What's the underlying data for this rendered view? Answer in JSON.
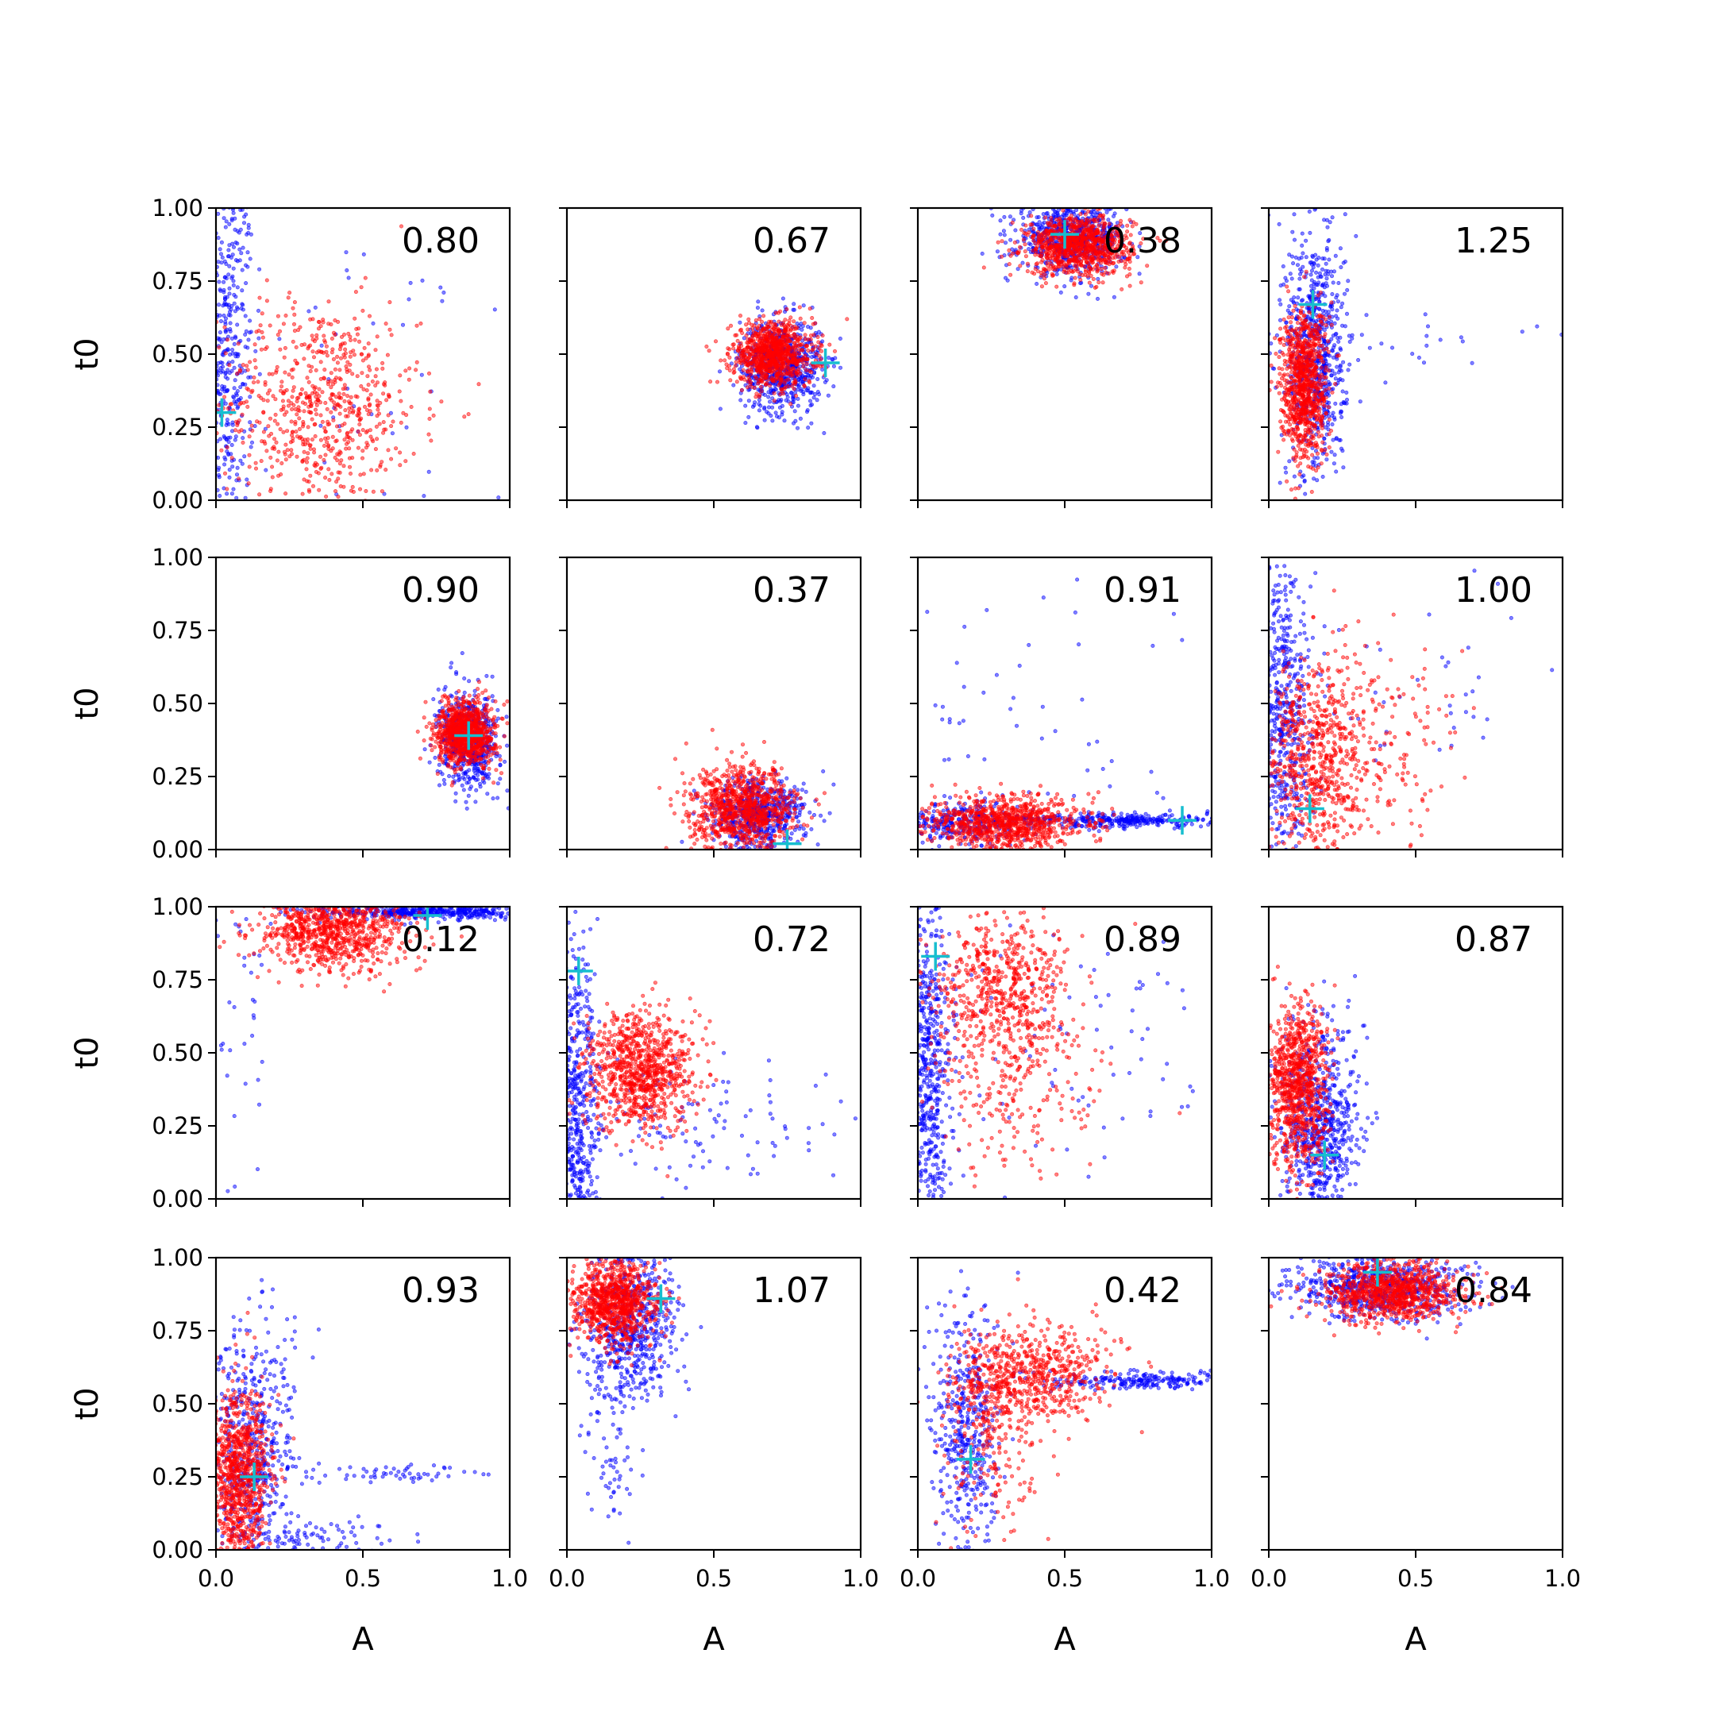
{
  "chart_data": {
    "type": "scatter",
    "grid": false,
    "xlabel": "A",
    "ylabel": "t0",
    "xlim": [
      0,
      1
    ],
    "ylim": [
      0,
      1
    ],
    "xticks": [
      "0.0",
      "0.5",
      "1.0"
    ],
    "yticks": [
      "0.00",
      "0.25",
      "0.50",
      "0.75",
      "1.00"
    ],
    "colors": {
      "series_blue": "#0000ff",
      "series_red": "#ff0000",
      "marker": "#17becf"
    },
    "panels": [
      {
        "annotation": "0.80",
        "truth": {
          "x": 0.02,
          "y": 0.3
        },
        "blue": [
          {
            "cx": 0.03,
            "cy": 0.5,
            "sx": 0.05,
            "sy": 0.35,
            "n": 500
          },
          {
            "cx": 0.45,
            "cy": 0.4,
            "sx": 0.3,
            "sy": 0.35,
            "n": 70
          }
        ],
        "red": [
          {
            "cx": 0.35,
            "cy": 0.32,
            "sx": 0.17,
            "sy": 0.18,
            "n": 700
          }
        ]
      },
      {
        "annotation": "0.67",
        "truth": {
          "x": 0.88,
          "y": 0.47
        },
        "blue": [
          {
            "cx": 0.73,
            "cy": 0.46,
            "sx": 0.07,
            "sy": 0.08,
            "n": 700
          }
        ],
        "red": [
          {
            "cx": 0.7,
            "cy": 0.5,
            "sx": 0.07,
            "sy": 0.055,
            "n": 900
          }
        ]
      },
      {
        "annotation": "0.38",
        "truth": {
          "x": 0.5,
          "y": 0.91
        },
        "blue": [
          {
            "cx": 0.52,
            "cy": 0.9,
            "sx": 0.09,
            "sy": 0.06,
            "n": 700
          }
        ],
        "red": [
          {
            "cx": 0.55,
            "cy": 0.87,
            "sx": 0.09,
            "sy": 0.05,
            "n": 900
          }
        ]
      },
      {
        "annotation": "1.25",
        "truth": {
          "x": 0.15,
          "y": 0.67
        },
        "blue": [
          {
            "cx": 0.16,
            "cy": 0.5,
            "sx": 0.05,
            "sy": 0.22,
            "n": 700
          },
          {
            "cx": 0.45,
            "cy": 0.55,
            "sx": 0.2,
            "sy": 0.06,
            "n": 25
          }
        ],
        "red": [
          {
            "cx": 0.12,
            "cy": 0.4,
            "sx": 0.04,
            "sy": 0.13,
            "n": 900
          }
        ]
      },
      {
        "annotation": "0.90",
        "truth": {
          "x": 0.86,
          "y": 0.39
        },
        "blue": [
          {
            "cx": 0.86,
            "cy": 0.37,
            "sx": 0.05,
            "sy": 0.08,
            "n": 600
          }
        ],
        "red": [
          {
            "cx": 0.85,
            "cy": 0.4,
            "sx": 0.05,
            "sy": 0.055,
            "n": 900
          }
        ]
      },
      {
        "annotation": "0.37",
        "truth": {
          "x": 0.75,
          "y": 0.02
        },
        "blue": [
          {
            "cx": 0.65,
            "cy": 0.12,
            "sx": 0.08,
            "sy": 0.06,
            "n": 600
          }
        ],
        "red": [
          {
            "cx": 0.6,
            "cy": 0.14,
            "sx": 0.09,
            "sy": 0.07,
            "n": 900
          }
        ]
      },
      {
        "annotation": "0.91",
        "truth": {
          "x": 0.9,
          "y": 0.1
        },
        "blue": [
          {
            "cx": 0.15,
            "cy": 0.09,
            "sx": 0.1,
            "sy": 0.04,
            "n": 300
          },
          {
            "cx": 0.7,
            "cy": 0.1,
            "sx": 0.2,
            "sy": 0.012,
            "n": 350
          },
          {
            "cx": 0.35,
            "cy": 0.45,
            "sx": 0.3,
            "sy": 0.28,
            "n": 60
          }
        ],
        "red": [
          {
            "cx": 0.3,
            "cy": 0.09,
            "sx": 0.13,
            "sy": 0.045,
            "n": 900
          }
        ]
      },
      {
        "annotation": "1.00",
        "truth": {
          "x": 0.14,
          "y": 0.14
        },
        "blue": [
          {
            "cx": 0.05,
            "cy": 0.45,
            "sx": 0.05,
            "sy": 0.28,
            "n": 550
          },
          {
            "cx": 0.55,
            "cy": 0.55,
            "sx": 0.25,
            "sy": 0.15,
            "n": 40
          }
        ],
        "red": [
          {
            "cx": 0.16,
            "cy": 0.3,
            "sx": 0.09,
            "sy": 0.18,
            "n": 700
          },
          {
            "cx": 0.4,
            "cy": 0.35,
            "sx": 0.12,
            "sy": 0.2,
            "n": 150
          }
        ]
      },
      {
        "annotation": "0.12",
        "truth": {
          "x": 0.72,
          "y": 0.97
        },
        "blue": [
          {
            "cx": 0.72,
            "cy": 0.98,
            "sx": 0.2,
            "sy": 0.012,
            "n": 450
          },
          {
            "cx": 0.1,
            "cy": 0.45,
            "sx": 0.07,
            "sy": 0.28,
            "n": 40
          }
        ],
        "red": [
          {
            "cx": 0.4,
            "cy": 0.92,
            "sx": 0.13,
            "sy": 0.07,
            "n": 900
          }
        ]
      },
      {
        "annotation": "0.72",
        "truth": {
          "x": 0.04,
          "y": 0.78
        },
        "blue": [
          {
            "cx": 0.03,
            "cy": 0.3,
            "sx": 0.04,
            "sy": 0.3,
            "n": 600
          },
          {
            "cx": 0.4,
            "cy": 0.25,
            "sx": 0.28,
            "sy": 0.12,
            "n": 120
          }
        ],
        "red": [
          {
            "cx": 0.25,
            "cy": 0.44,
            "sx": 0.09,
            "sy": 0.1,
            "n": 900
          }
        ]
      },
      {
        "annotation": "0.89",
        "truth": {
          "x": 0.06,
          "y": 0.83
        },
        "blue": [
          {
            "cx": 0.04,
            "cy": 0.45,
            "sx": 0.04,
            "sy": 0.3,
            "n": 600
          },
          {
            "cx": 0.55,
            "cy": 0.5,
            "sx": 0.25,
            "sy": 0.25,
            "n": 80
          }
        ],
        "red": [
          {
            "cx": 0.28,
            "cy": 0.73,
            "sx": 0.12,
            "sy": 0.12,
            "n": 550
          },
          {
            "cx": 0.3,
            "cy": 0.4,
            "sx": 0.14,
            "sy": 0.17,
            "n": 250
          }
        ]
      },
      {
        "annotation": "0.87",
        "truth": {
          "x": 0.19,
          "y": 0.15
        },
        "blue": [
          {
            "cx": 0.17,
            "cy": 0.25,
            "sx": 0.07,
            "sy": 0.18,
            "n": 700
          }
        ],
        "red": [
          {
            "cx": 0.1,
            "cy": 0.38,
            "sx": 0.05,
            "sy": 0.14,
            "n": 900
          }
        ]
      },
      {
        "annotation": "0.93",
        "truth": {
          "x": 0.13,
          "y": 0.25
        },
        "blue": [
          {
            "cx": 0.12,
            "cy": 0.3,
            "sx": 0.07,
            "sy": 0.25,
            "n": 550
          },
          {
            "cx": 0.65,
            "cy": 0.26,
            "sx": 0.2,
            "sy": 0.015,
            "n": 60
          },
          {
            "cx": 0.3,
            "cy": 0.04,
            "sx": 0.15,
            "sy": 0.03,
            "n": 80
          }
        ],
        "red": [
          {
            "cx": 0.08,
            "cy": 0.25,
            "sx": 0.05,
            "sy": 0.15,
            "n": 900
          }
        ]
      },
      {
        "annotation": "1.07",
        "truth": {
          "x": 0.32,
          "y": 0.86
        },
        "blue": [
          {
            "cx": 0.22,
            "cy": 0.78,
            "sx": 0.08,
            "sy": 0.13,
            "n": 600
          },
          {
            "cx": 0.15,
            "cy": 0.4,
            "sx": 0.05,
            "sy": 0.18,
            "n": 80
          }
        ],
        "red": [
          {
            "cx": 0.16,
            "cy": 0.85,
            "sx": 0.07,
            "sy": 0.07,
            "n": 900
          }
        ]
      },
      {
        "annotation": "0.42",
        "truth": {
          "x": 0.18,
          "y": 0.31
        },
        "blue": [
          {
            "cx": 0.17,
            "cy": 0.4,
            "sx": 0.06,
            "sy": 0.22,
            "n": 450
          },
          {
            "cx": 0.75,
            "cy": 0.58,
            "sx": 0.15,
            "sy": 0.015,
            "n": 220
          }
        ],
        "red": [
          {
            "cx": 0.38,
            "cy": 0.6,
            "sx": 0.14,
            "sy": 0.08,
            "n": 600
          },
          {
            "cx": 0.25,
            "cy": 0.4,
            "sx": 0.08,
            "sy": 0.15,
            "n": 250
          }
        ]
      },
      {
        "annotation": "0.84",
        "truth": {
          "x": 0.37,
          "y": 0.95
        },
        "blue": [
          {
            "cx": 0.38,
            "cy": 0.9,
            "sx": 0.15,
            "sy": 0.06,
            "n": 700
          }
        ],
        "red": [
          {
            "cx": 0.42,
            "cy": 0.88,
            "sx": 0.11,
            "sy": 0.05,
            "n": 900
          }
        ]
      }
    ]
  }
}
